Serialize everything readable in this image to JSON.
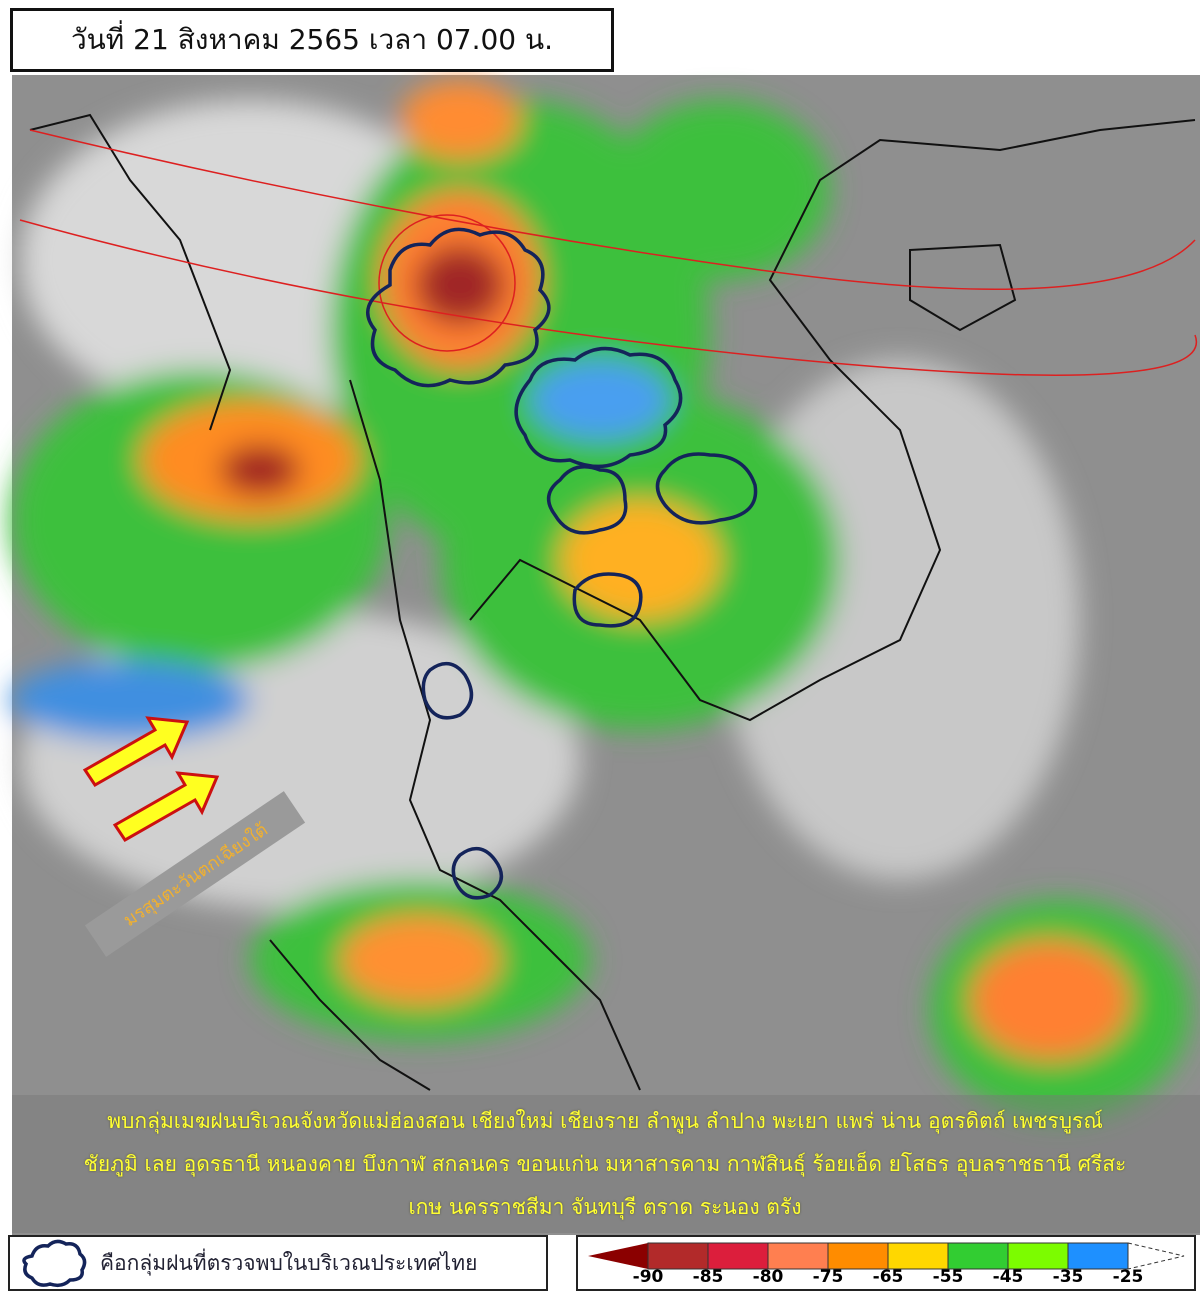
{
  "header": {
    "title": "วันที่ 21 สิงหาคม 2565 เวลา 07.00 น."
  },
  "info": {
    "lines": [
      "พบกลุ่มเมฆฝนบริเวณจังหวัดแม่ฮ่องสอน เชียงใหม่ เชียงราย ลำพูน ลำปาง พะเยา แพร่ น่าน อุตรดิตถ์ เพชรบูรณ์",
      "ชัยภูมิ เลย อุดรธานี หนองคาย บึงกาฬ สกลนคร ขอนแก่น มหาสารคาม กาฬสินธุ์ ร้อยเอ็ด ยโสธร อุบลราชธานี ศรีสะ",
      "เกษ นครราชสีมา จันทบุรี ตราด ระนอง ตรัง"
    ]
  },
  "annotation": {
    "monsoon_label": "มรสุมตะวันตกเฉียงใต้",
    "arrow_icon": "yellow-arrow-northeast"
  },
  "legend": {
    "cloud_key_label": "คือกลุ่มฝนที่ตรวจพบในบริเวณประเทศไทย",
    "cloud_icon": "cloud-outline",
    "scale_ticks": [
      "-90",
      "-85",
      "-80",
      "-75",
      "-65",
      "-55",
      "-45",
      "-35",
      "-25"
    ],
    "scale_colors": [
      "#8b0000",
      "#b22a2a",
      "#dc1e3c",
      "#ff7f50",
      "#ff8c00",
      "#ffd700",
      "#32cd32",
      "#7cfc00",
      "#1e90ff"
    ]
  }
}
